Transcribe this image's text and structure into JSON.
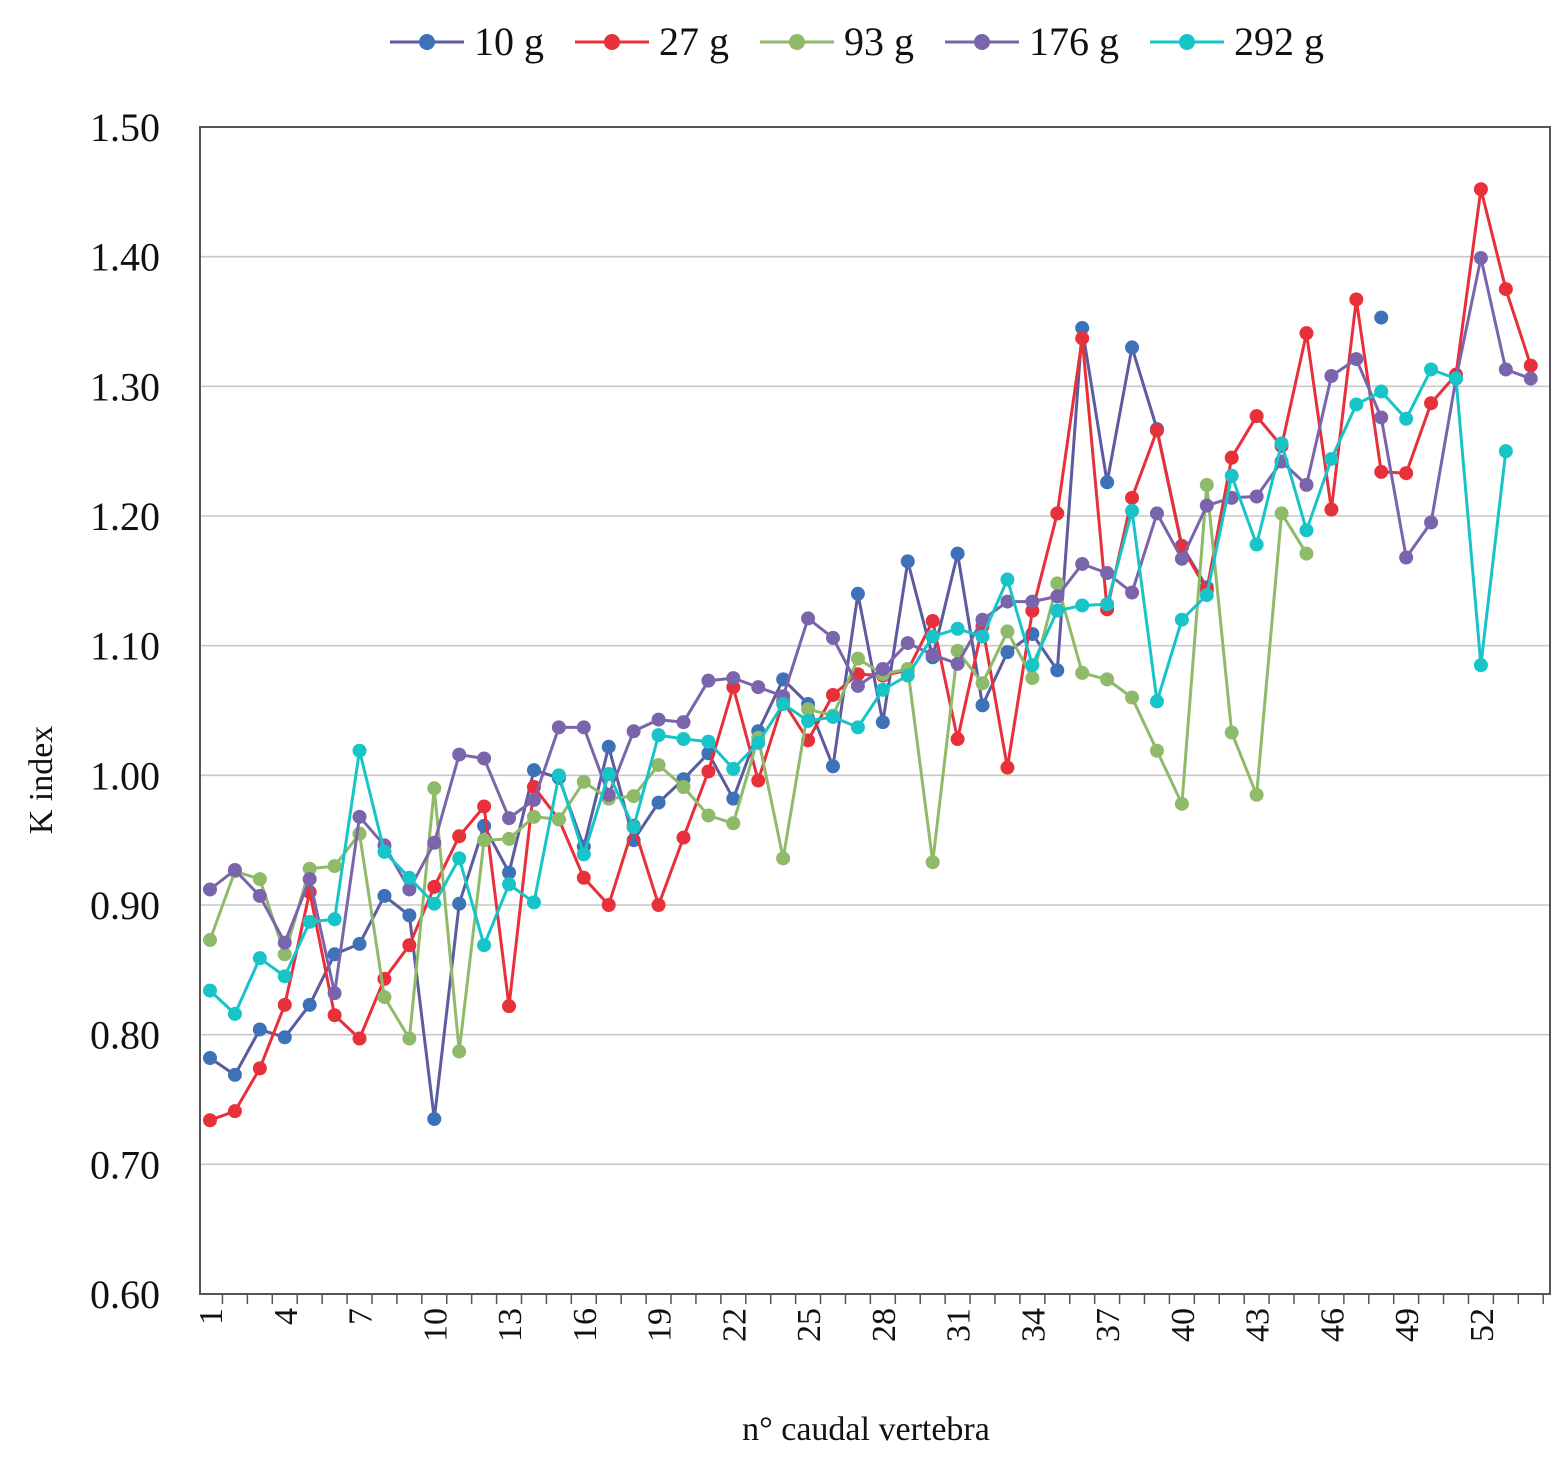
{
  "chart_data": {
    "type": "line",
    "title": "",
    "xlabel": "n° caudal vertebra",
    "ylabel": "K index",
    "ylim": [
      0.6,
      1.5
    ],
    "yticks": [
      "0.60",
      "0.70",
      "0.80",
      "0.90",
      "1.00",
      "1.10",
      "1.20",
      "1.30",
      "1.40",
      "1.50"
    ],
    "ytick_values": [
      0.6,
      0.7,
      0.8,
      0.9,
      1.0,
      1.1,
      1.2,
      1.3,
      1.4,
      1.5
    ],
    "x": [
      1,
      2,
      3,
      4,
      5,
      6,
      7,
      8,
      9,
      10,
      11,
      12,
      13,
      14,
      15,
      16,
      17,
      18,
      19,
      20,
      21,
      22,
      23,
      24,
      25,
      26,
      27,
      28,
      29,
      30,
      31,
      32,
      33,
      34,
      35,
      36,
      37,
      38,
      39,
      40,
      41,
      42,
      43,
      44,
      45,
      46,
      47,
      48,
      49,
      50,
      51,
      52,
      53,
      54
    ],
    "xtick_labels": [
      "1",
      "4",
      "7",
      "10",
      "13",
      "16",
      "19",
      "22",
      "25",
      "28",
      "31",
      "34",
      "37",
      "40",
      "43",
      "46",
      "49",
      "52"
    ],
    "xtick_values": [
      1,
      4,
      7,
      10,
      13,
      16,
      19,
      22,
      25,
      28,
      31,
      34,
      37,
      40,
      43,
      46,
      49,
      52
    ],
    "grid": true,
    "legend_position": "top",
    "series": [
      {
        "name": "10 g",
        "color": "#5b5ba0",
        "marker_color": "#3d72b8",
        "values": [
          0.782,
          0.769,
          0.804,
          0.798,
          0.823,
          0.862,
          0.87,
          0.907,
          0.892,
          0.735,
          0.901,
          0.961,
          0.925,
          1.004,
          0.998,
          0.945,
          1.022,
          0.95,
          0.979,
          0.997,
          1.017,
          0.982,
          1.034,
          1.074,
          1.055,
          1.007,
          1.14,
          1.041,
          1.165,
          1.091,
          1.171,
          1.054,
          1.095,
          1.109,
          1.081,
          1.345,
          1.226,
          1.33,
          1.267,
          1.177,
          1.145,
          null,
          null,
          null,
          null,
          null,
          null,
          1.353,
          null,
          null,
          null,
          null,
          null,
          null
        ]
      },
      {
        "name": "27 g",
        "color": "#e8303a",
        "marker_color": "#e8303a",
        "values": [
          0.734,
          0.741,
          0.774,
          0.823,
          0.91,
          0.815,
          0.797,
          0.843,
          0.869,
          0.914,
          0.953,
          0.976,
          0.822,
          0.991,
          0.966,
          0.921,
          0.9,
          0.961,
          0.9,
          0.952,
          1.003,
          1.068,
          0.996,
          1.057,
          1.027,
          1.062,
          1.078,
          1.077,
          1.081,
          1.119,
          1.028,
          1.115,
          1.006,
          1.127,
          1.202,
          1.337,
          1.128,
          1.214,
          1.266,
          1.176,
          1.143,
          1.245,
          1.277,
          1.254,
          1.341,
          1.205,
          1.367,
          1.234,
          1.233,
          1.287,
          1.309,
          1.452,
          1.375,
          1.316
        ]
      },
      {
        "name": "93 g",
        "color": "#8fba6a",
        "marker_color": "#8fba6a",
        "values": [
          0.873,
          0.926,
          0.92,
          0.862,
          0.928,
          0.93,
          0.955,
          0.829,
          0.797,
          0.99,
          0.787,
          0.95,
          0.951,
          0.968,
          0.966,
          0.995,
          0.982,
          0.984,
          1.008,
          0.991,
          0.969,
          0.963,
          1.029,
          0.936,
          1.051,
          1.046,
          1.09,
          1.078,
          1.082,
          0.933,
          1.096,
          1.071,
          1.111,
          1.075,
          1.148,
          1.079,
          1.074,
          1.06,
          1.019,
          0.978,
          1.224,
          1.033,
          0.985,
          1.202,
          1.171,
          null,
          null,
          null,
          null,
          null,
          null,
          null,
          null,
          null
        ]
      },
      {
        "name": "176 g",
        "color": "#7a65ac",
        "marker_color": "#7a65ac",
        "values": [
          0.912,
          0.927,
          0.907,
          0.871,
          0.92,
          0.832,
          0.968,
          0.946,
          0.912,
          0.948,
          1.016,
          1.013,
          0.967,
          0.981,
          1.037,
          1.037,
          0.985,
          1.034,
          1.043,
          1.041,
          1.073,
          1.075,
          1.068,
          1.061,
          1.121,
          1.106,
          1.069,
          1.082,
          1.102,
          1.093,
          1.086,
          1.12,
          1.134,
          1.134,
          1.138,
          1.163,
          1.156,
          1.141,
          1.202,
          1.167,
          1.208,
          1.214,
          1.215,
          1.242,
          1.224,
          1.308,
          1.321,
          1.276,
          1.168,
          1.195,
          1.306,
          1.399,
          1.313,
          1.306
        ]
      },
      {
        "name": "292 g",
        "color": "#17c4c8",
        "marker_color": "#17c4c8",
        "values": [
          0.834,
          0.816,
          0.859,
          0.845,
          0.887,
          0.889,
          1.019,
          0.941,
          0.921,
          0.901,
          0.936,
          0.869,
          0.916,
          0.902,
          1.0,
          0.939,
          1.001,
          0.96,
          1.031,
          1.028,
          1.026,
          1.005,
          1.025,
          1.055,
          1.042,
          1.045,
          1.037,
          1.066,
          1.077,
          1.107,
          1.113,
          1.107,
          1.151,
          1.085,
          1.127,
          1.131,
          1.132,
          1.204,
          1.057,
          1.12,
          1.139,
          1.231,
          1.178,
          1.256,
          1.189,
          1.244,
          1.286,
          1.296,
          1.275,
          1.313,
          1.306,
          1.085,
          1.25,
          null
        ]
      }
    ]
  }
}
